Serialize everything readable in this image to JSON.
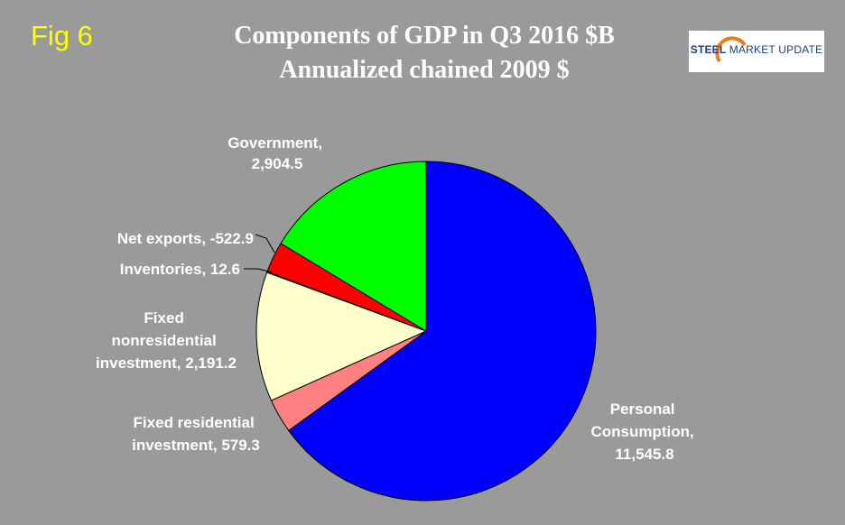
{
  "header": {
    "fig_label": "Fig 6",
    "title_line1": "Components of GDP in Q3  2016 $B",
    "title_line2": "Annualized chained 2009 $"
  },
  "logo": {
    "word1": "STEEL",
    "word2": "MARKET UPDATE"
  },
  "chart_data": {
    "type": "pie",
    "title": "Components of GDP in Q3  2016 $B",
    "subtitle": "Annualized chained 2009 $",
    "slices": [
      {
        "name": "Personal Consumption",
        "value": 11545.8,
        "value_label": "11,545.8",
        "color": "#0000ff"
      },
      {
        "name": "Fixed residential investment",
        "value": 579.3,
        "value_label": "579.3",
        "color": "#ff8080"
      },
      {
        "name": "Fixed nonresidential investment",
        "value": 2191.2,
        "value_label": "2,191.2",
        "color": "#ffffcc"
      },
      {
        "name": "Inventories",
        "value": 12.6,
        "value_label": "12.6",
        "color": "#ffffff"
      },
      {
        "name": "Net exports",
        "value": -522.9,
        "value_label": "-522.9",
        "color": "#ff0000"
      },
      {
        "name": "Government",
        "value": 2904.5,
        "value_label": "2,904.5",
        "color": "#00ff00"
      }
    ],
    "labels": [
      "Personal Consumption, 11,545.8",
      "Fixed residential investment, 579.3",
      "Fixed nonresidential investment, 2,191.2",
      "Inventories, 12.6",
      "Net exports, -522.9",
      "Government, 2,904.5"
    ]
  }
}
